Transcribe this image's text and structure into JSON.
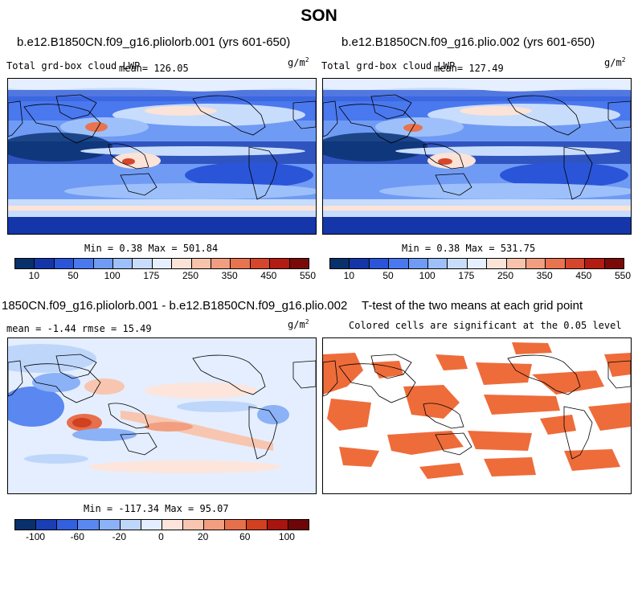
{
  "suptitle": "SON",
  "panels": [
    {
      "title": "b.e12.B1850CN.f09_g16.pliolorb.001 (yrs 601-650)",
      "subtitle": "Total grd-box cloud LWP",
      "mean": "mean= 126.05",
      "units_base": "g/m",
      "units_exp": "2",
      "minmax": "Min =   0.38 Max = 501.84",
      "colorbar_ticks": [
        "10",
        "50",
        "100",
        "175",
        "250",
        "350",
        "450",
        "550"
      ]
    },
    {
      "title": "b.e12.B1850CN.f09_g16.plio.002 (yrs 601-650)",
      "subtitle": "Total grd-box cloud LWP",
      "mean": "mean= 127.49",
      "units_base": "g/m",
      "units_exp": "2",
      "minmax": "Min =   0.38 Max = 531.75",
      "colorbar_ticks": [
        "10",
        "50",
        "100",
        "175",
        "250",
        "350",
        "450",
        "550"
      ]
    },
    {
      "title": "1850CN.f09_g16.pliolorb.001 - b.e12.B1850CN.f09_g16.plio.002",
      "stats": "mean =  -1.44    rmse =  15.49",
      "units_base": "g/m",
      "units_exp": "2",
      "minmax": "Min = -117.34 Max =  95.07",
      "colorbar_ticks": [
        "-100",
        "-60",
        "-20",
        "0",
        "20",
        "60",
        "100"
      ]
    },
    {
      "title": "T-test of the two means at each grid point",
      "subtitle": "Colored cells are significant at the 0.05 level"
    }
  ],
  "colors": {
    "field_scale": [
      "#08306b",
      "#1436a8",
      "#2a55d8",
      "#4a78ee",
      "#6f9bf5",
      "#9ec0fa",
      "#c8dcfc",
      "#e6efff",
      "#fbe3d8",
      "#f7c3aa",
      "#f19d7f",
      "#e8734f",
      "#d6462c",
      "#b31c12",
      "#7a0a08"
    ],
    "diff_scale": [
      "#08306b",
      "#1a3fb5",
      "#3360de",
      "#5a88f0",
      "#8bb1f7",
      "#bfd6fb",
      "#e4eefe",
      "#fde5dc",
      "#f8c6b0",
      "#f19f80",
      "#e66f4c",
      "#d1401f",
      "#a8140e",
      "#6e0506"
    ],
    "significant": "#ee6c3a"
  }
}
